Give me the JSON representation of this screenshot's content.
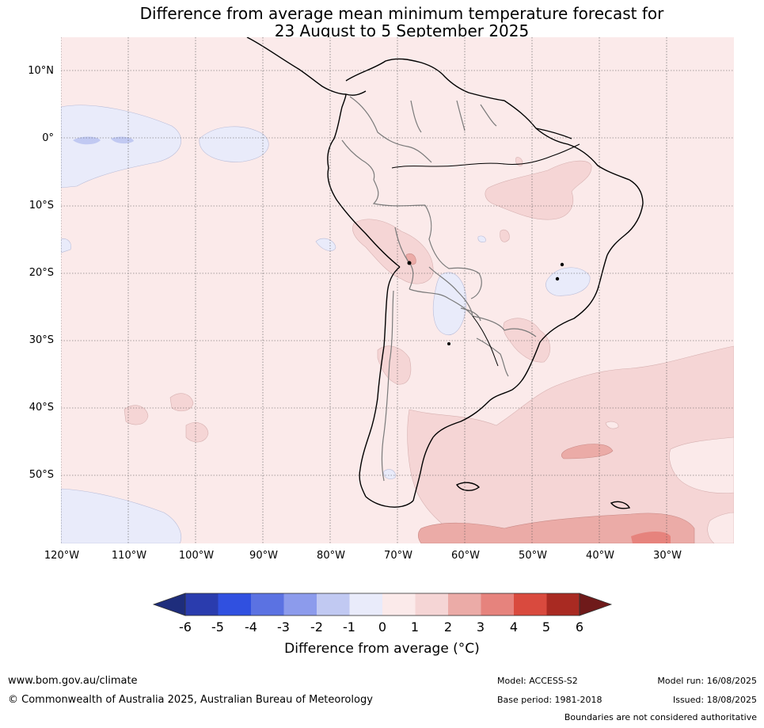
{
  "title": {
    "line1": "Difference from average mean minimum temperature forecast for",
    "line2": "23 August to 5 September 2025"
  },
  "map": {
    "lat_labels": [
      "10°N",
      "0°",
      "10°S",
      "20°S",
      "30°S",
      "40°S",
      "50°S"
    ],
    "lon_labels": [
      "120°W",
      "110°W",
      "100°W",
      "90°W",
      "80°W",
      "70°W",
      "60°W",
      "50°W",
      "40°W",
      "30°W"
    ],
    "base_anomaly_category": "0 to 1",
    "colors": {
      "b6": "#1e2d7c",
      "b5": "#2a3cae",
      "b4": "#3050e0",
      "b3": "#5b72e2",
      "b2": "#8c9bec",
      "b1": "#c1c9f2",
      "b0": "#e9ebfa",
      "r0": "#fbeaea",
      "r1": "#f5d5d5",
      "r2": "#ebaba7",
      "r3": "#e6837d",
      "r4": "#d94a3e",
      "r5": "#a92a22",
      "r6": "#6f1a1a",
      "coast": "#000000",
      "borders": "#7a7a7a",
      "grid": "#555555"
    }
  },
  "colorbar": {
    "ticks": [
      "-6",
      "-5",
      "-4",
      "-3",
      "-2",
      "-1",
      "0",
      "1",
      "2",
      "3",
      "4",
      "5",
      "6"
    ],
    "label": "Difference from average (°C)"
  },
  "footer": {
    "website": "www.bom.gov.au/climate",
    "copyright": "© Commonwealth of Australia 2025, Australian Bureau of Meteorology",
    "model": "Model: ACCESS-S2",
    "base_period": "Base period: 1981-2018",
    "model_run": "Model run: 16/08/2025",
    "issued": "Issued: 18/08/2025",
    "disclaimer": "Boundaries are not considered authoritative"
  }
}
